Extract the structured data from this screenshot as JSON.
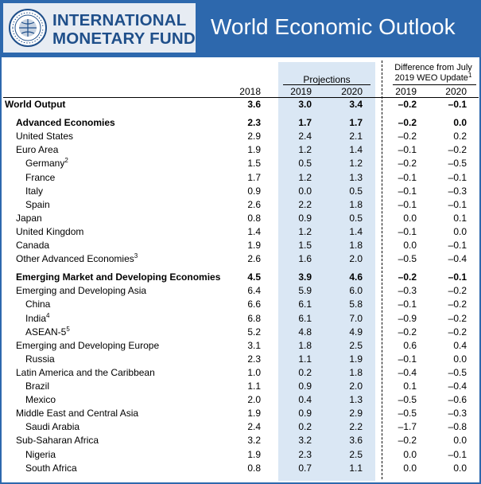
{
  "header": {
    "logo_line1": "INTERNATIONAL",
    "logo_line2": "MONETARY FUND",
    "title": "World Economic Outlook"
  },
  "table": {
    "group_projections": "Projections",
    "group_difference_line1": "Difference from July",
    "group_difference_line2": "2019 WEO Update",
    "group_difference_note": "1",
    "col_2018": "2018",
    "col_2019": "2019",
    "col_2020": "2020",
    "col_diff_2019": "2019",
    "col_diff_2020": "2020",
    "rows": [
      {
        "label": "World Output",
        "note": "",
        "indent": 0,
        "bold": true,
        "v2018": "3.6",
        "v2019": "3.0",
        "v2020": "3.4",
        "d2019": "–0.2",
        "d2020": "–0.1"
      },
      {
        "label": "Advanced Economies",
        "note": "",
        "indent": 1,
        "bold": true,
        "v2018": "2.3",
        "v2019": "1.7",
        "v2020": "1.7",
        "d2019": "–0.2",
        "d2020": "0.0"
      },
      {
        "label": "United States",
        "note": "",
        "indent": 1,
        "bold": false,
        "v2018": "2.9",
        "v2019": "2.4",
        "v2020": "2.1",
        "d2019": "–0.2",
        "d2020": "0.2"
      },
      {
        "label": "Euro Area",
        "note": "",
        "indent": 1,
        "bold": false,
        "v2018": "1.9",
        "v2019": "1.2",
        "v2020": "1.4",
        "d2019": "–0.1",
        "d2020": "–0.2"
      },
      {
        "label": "Germany",
        "note": "2",
        "indent": 2,
        "bold": false,
        "v2018": "1.5",
        "v2019": "0.5",
        "v2020": "1.2",
        "d2019": "–0.2",
        "d2020": "–0.5"
      },
      {
        "label": "France",
        "note": "",
        "indent": 2,
        "bold": false,
        "v2018": "1.7",
        "v2019": "1.2",
        "v2020": "1.3",
        "d2019": "–0.1",
        "d2020": "–0.1"
      },
      {
        "label": "Italy",
        "note": "",
        "indent": 2,
        "bold": false,
        "v2018": "0.9",
        "v2019": "0.0",
        "v2020": "0.5",
        "d2019": "–0.1",
        "d2020": "–0.3"
      },
      {
        "label": "Spain",
        "note": "",
        "indent": 2,
        "bold": false,
        "v2018": "2.6",
        "v2019": "2.2",
        "v2020": "1.8",
        "d2019": "–0.1",
        "d2020": "–0.1"
      },
      {
        "label": "Japan",
        "note": "",
        "indent": 1,
        "bold": false,
        "v2018": "0.8",
        "v2019": "0.9",
        "v2020": "0.5",
        "d2019": "0.0",
        "d2020": "0.1"
      },
      {
        "label": "United Kingdom",
        "note": "",
        "indent": 1,
        "bold": false,
        "v2018": "1.4",
        "v2019": "1.2",
        "v2020": "1.4",
        "d2019": "–0.1",
        "d2020": "0.0"
      },
      {
        "label": "Canada",
        "note": "",
        "indent": 1,
        "bold": false,
        "v2018": "1.9",
        "v2019": "1.5",
        "v2020": "1.8",
        "d2019": "0.0",
        "d2020": "–0.1"
      },
      {
        "label": "Other Advanced Economies",
        "note": "3",
        "indent": 1,
        "bold": false,
        "v2018": "2.6",
        "v2019": "1.6",
        "v2020": "2.0",
        "d2019": "–0.5",
        "d2020": "–0.4"
      },
      {
        "label": "Emerging Market and Developing Economies",
        "note": "",
        "indent": 1,
        "bold": true,
        "v2018": "4.5",
        "v2019": "3.9",
        "v2020": "4.6",
        "d2019": "–0.2",
        "d2020": "–0.1"
      },
      {
        "label": "Emerging and Developing Asia",
        "note": "",
        "indent": 1,
        "bold": false,
        "v2018": "6.4",
        "v2019": "5.9",
        "v2020": "6.0",
        "d2019": "–0.3",
        "d2020": "–0.2"
      },
      {
        "label": "China",
        "note": "",
        "indent": 2,
        "bold": false,
        "v2018": "6.6",
        "v2019": "6.1",
        "v2020": "5.8",
        "d2019": "–0.1",
        "d2020": "–0.2"
      },
      {
        "label": "India",
        "note": "4",
        "indent": 2,
        "bold": false,
        "v2018": "6.8",
        "v2019": "6.1",
        "v2020": "7.0",
        "d2019": "–0.9",
        "d2020": "–0.2"
      },
      {
        "label": "ASEAN-5",
        "note": "5",
        "indent": 2,
        "bold": false,
        "v2018": "5.2",
        "v2019": "4.8",
        "v2020": "4.9",
        "d2019": "–0.2",
        "d2020": "–0.2"
      },
      {
        "label": "Emerging and Developing Europe",
        "note": "",
        "indent": 1,
        "bold": false,
        "v2018": "3.1",
        "v2019": "1.8",
        "v2020": "2.5",
        "d2019": "0.6",
        "d2020": "0.4"
      },
      {
        "label": "Russia",
        "note": "",
        "indent": 2,
        "bold": false,
        "v2018": "2.3",
        "v2019": "1.1",
        "v2020": "1.9",
        "d2019": "–0.1",
        "d2020": "0.0"
      },
      {
        "label": "Latin America and the Caribbean",
        "note": "",
        "indent": 1,
        "bold": false,
        "v2018": "1.0",
        "v2019": "0.2",
        "v2020": "1.8",
        "d2019": "–0.4",
        "d2020": "–0.5"
      },
      {
        "label": "Brazil",
        "note": "",
        "indent": 2,
        "bold": false,
        "v2018": "1.1",
        "v2019": "0.9",
        "v2020": "2.0",
        "d2019": "0.1",
        "d2020": "–0.4"
      },
      {
        "label": "Mexico",
        "note": "",
        "indent": 2,
        "bold": false,
        "v2018": "2.0",
        "v2019": "0.4",
        "v2020": "1.3",
        "d2019": "–0.5",
        "d2020": "–0.6"
      },
      {
        "label": "Middle East and Central Asia",
        "note": "",
        "indent": 1,
        "bold": false,
        "v2018": "1.9",
        "v2019": "0.9",
        "v2020": "2.9",
        "d2019": "–0.5",
        "d2020": "–0.3"
      },
      {
        "label": "Saudi Arabia",
        "note": "",
        "indent": 2,
        "bold": false,
        "v2018": "2.4",
        "v2019": "0.2",
        "v2020": "2.2",
        "d2019": "–1.7",
        "d2020": "–0.8"
      },
      {
        "label": "Sub-Saharan Africa",
        "note": "",
        "indent": 1,
        "bold": false,
        "v2018": "3.2",
        "v2019": "3.2",
        "v2020": "3.6",
        "d2019": "–0.2",
        "d2020": "0.0"
      },
      {
        "label": "Nigeria",
        "note": "",
        "indent": 2,
        "bold": false,
        "v2018": "1.9",
        "v2019": "2.3",
        "v2020": "2.5",
        "d2019": "0.0",
        "d2020": "–0.1"
      },
      {
        "label": "South Africa",
        "note": "",
        "indent": 2,
        "bold": false,
        "v2018": "0.8",
        "v2019": "0.7",
        "v2020": "1.1",
        "d2019": "0.0",
        "d2020": "0.0"
      }
    ]
  },
  "colors": {
    "banner_blue": "#2d68ad",
    "logo_blue": "#1f4f8a",
    "projection_shade": "#dae7f4"
  }
}
